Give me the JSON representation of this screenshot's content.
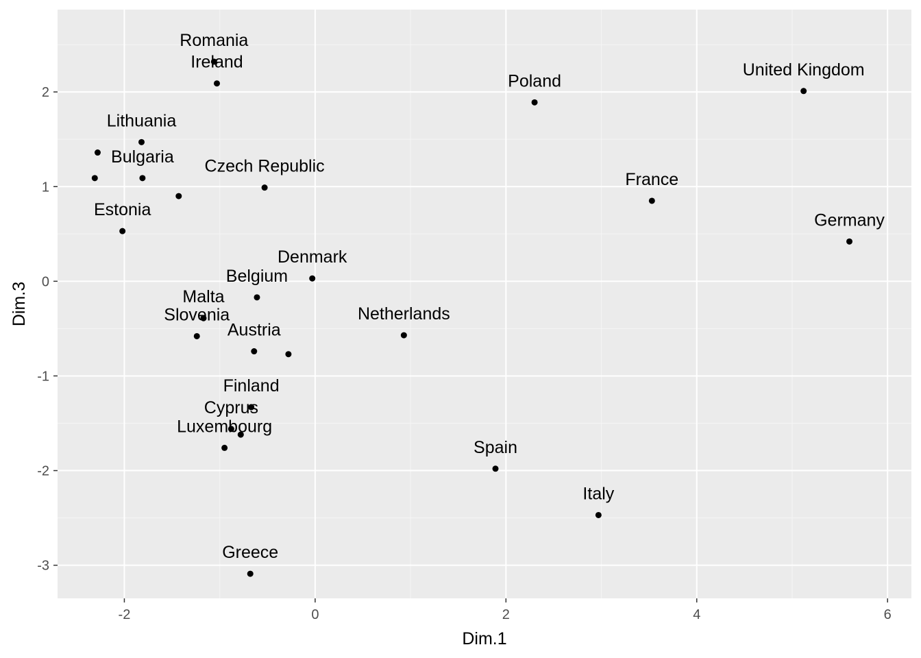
{
  "chart_data": {
    "type": "scatter",
    "xlabel": "Dim.1",
    "ylabel": "Dim.3",
    "xlim": [
      -2.7,
      6.25
    ],
    "ylim": [
      -3.35,
      2.87
    ],
    "x_ticks": [
      -2,
      0,
      2,
      4,
      6
    ],
    "y_ticks": [
      -3,
      -2,
      -1,
      0,
      1,
      2
    ],
    "x_tick_labels": [
      "-2",
      "0",
      "2",
      "4",
      "6"
    ],
    "y_tick_labels": [
      "-3",
      "-2",
      "-1",
      "0",
      "1",
      "2"
    ],
    "grid": true,
    "legend": "none",
    "colors": {
      "panel": "#ebebeb",
      "grid_major": "#ffffff",
      "grid_minor": "#f5f5f5",
      "point": "#000000",
      "tick": "#333333"
    },
    "points": [
      {
        "label": "",
        "x": -2.28,
        "y": 1.36
      },
      {
        "label": "Lithuania",
        "x": -1.82,
        "y": 1.47
      },
      {
        "label": "",
        "x": -2.31,
        "y": 1.09
      },
      {
        "label": "Bulgaria",
        "x": -1.81,
        "y": 1.09
      },
      {
        "label": "",
        "x": -1.43,
        "y": 0.9
      },
      {
        "label": "Estonia",
        "x": -2.02,
        "y": 0.53
      },
      {
        "label": "Romania",
        "x": -1.06,
        "y": 2.32
      },
      {
        "label": "Ireland",
        "x": -1.03,
        "y": 2.09
      },
      {
        "label": "Czech Republic",
        "x": -0.53,
        "y": 0.99
      },
      {
        "label": "Poland",
        "x": 2.3,
        "y": 1.89
      },
      {
        "label": "United Kingdom",
        "x": 5.12,
        "y": 2.01
      },
      {
        "label": "France",
        "x": 3.53,
        "y": 0.85
      },
      {
        "label": "Germany",
        "x": 5.6,
        "y": 0.42
      },
      {
        "label": "Denmark",
        "x": -0.03,
        "y": 0.03
      },
      {
        "label": "Belgium",
        "x": -0.61,
        "y": -0.17
      },
      {
        "label": "Malta",
        "x": -1.17,
        "y": -0.39
      },
      {
        "label": "Slovenia",
        "x": -1.24,
        "y": -0.58
      },
      {
        "label": "Austria",
        "x": -0.64,
        "y": -0.74
      },
      {
        "label": "",
        "x": -0.28,
        "y": -0.77
      },
      {
        "label": "Netherlands",
        "x": 0.93,
        "y": -0.57
      },
      {
        "label": "Finland",
        "x": -0.67,
        "y": -1.33
      },
      {
        "label": "Cyprus",
        "x": -0.88,
        "y": -1.56
      },
      {
        "label": "",
        "x": -0.78,
        "y": -1.62
      },
      {
        "label": "Luxembourg",
        "x": -0.95,
        "y": -1.76
      },
      {
        "label": "Spain",
        "x": 1.89,
        "y": -1.98
      },
      {
        "label": "Italy",
        "x": 2.97,
        "y": -2.47
      },
      {
        "label": "Greece",
        "x": -0.68,
        "y": -3.09
      }
    ]
  }
}
